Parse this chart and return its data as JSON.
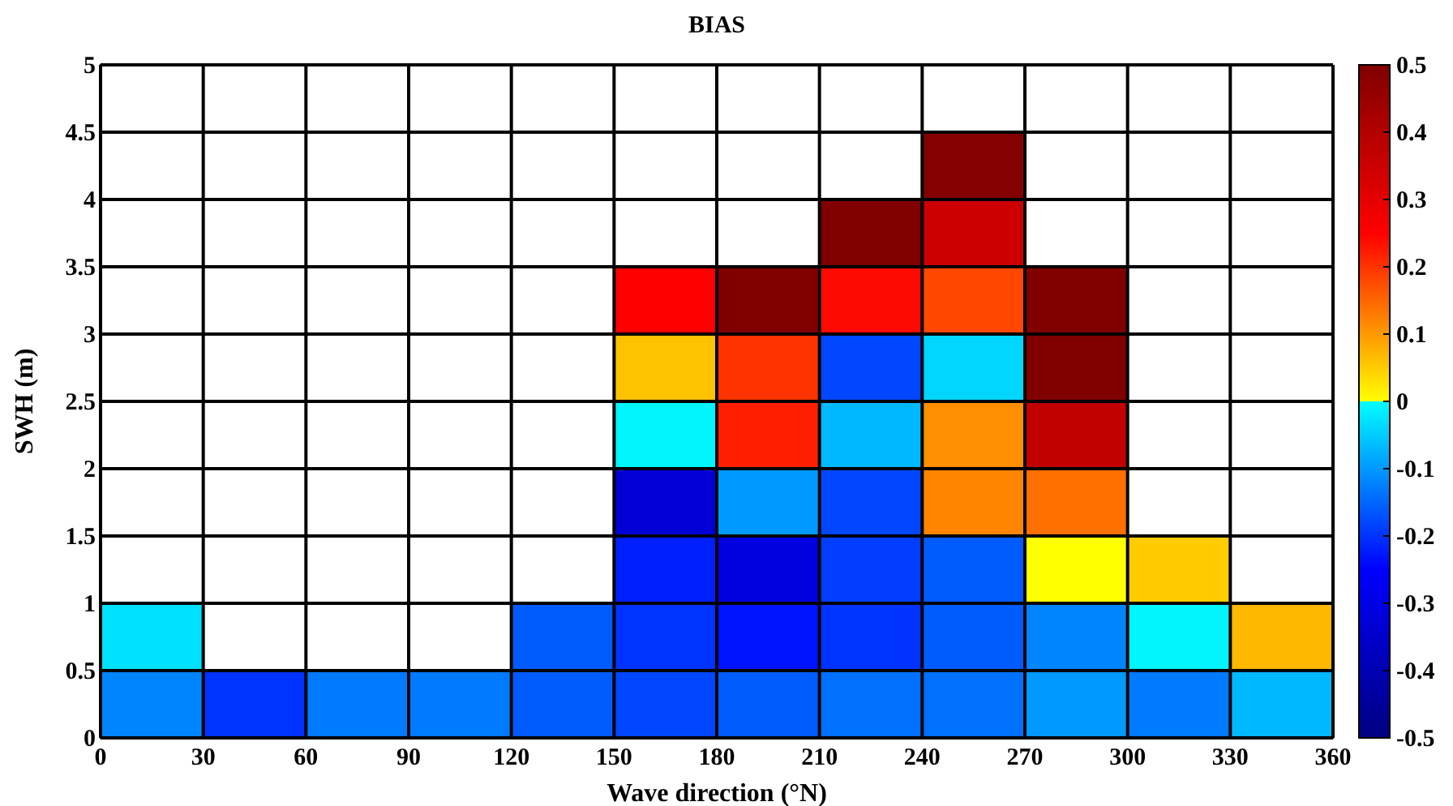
{
  "chart_data": {
    "type": "heatmap",
    "title": "BIAS",
    "xlabel": "Wave direction (°N)",
    "ylabel": "SWH (m)",
    "x": [
      15,
      45,
      75,
      105,
      135,
      165,
      195,
      225,
      255,
      285,
      315,
      345
    ],
    "y": [
      4.25,
      3.75,
      3.25,
      2.75,
      2.25,
      1.75,
      1.25,
      0.75,
      0.25
    ],
    "xlim": [
      0,
      360
    ],
    "xticks": [
      0,
      30,
      60,
      90,
      120,
      150,
      180,
      210,
      240,
      270,
      300,
      330,
      360
    ],
    "ylim": [
      0,
      5
    ],
    "yticks": [
      0,
      0.5,
      1,
      1.5,
      2,
      2.5,
      3,
      3.5,
      4,
      4.5,
      5
    ],
    "cells": [
      [
        null,
        null,
        null,
        null,
        null,
        null,
        null,
        null,
        0.49,
        null,
        null,
        null
      ],
      [
        null,
        null,
        null,
        null,
        null,
        null,
        null,
        0.5,
        0.35,
        null,
        null,
        null
      ],
      [
        null,
        null,
        null,
        null,
        null,
        0.25,
        0.5,
        0.24,
        0.18,
        0.5,
        null,
        null
      ],
      [
        null,
        null,
        null,
        null,
        null,
        0.06,
        0.2,
        -0.18,
        -0.04,
        0.5,
        null,
        null
      ],
      [
        null,
        null,
        null,
        null,
        null,
        -0.01,
        0.22,
        -0.07,
        0.11,
        0.37,
        null,
        null
      ],
      [
        null,
        null,
        null,
        null,
        null,
        -0.33,
        -0.1,
        -0.18,
        0.12,
        0.14,
        null,
        null
      ],
      [
        null,
        null,
        null,
        null,
        null,
        -0.22,
        -0.31,
        -0.19,
        -0.16,
        0.0,
        0.05,
        null
      ],
      [
        -0.03,
        null,
        null,
        null,
        -0.16,
        -0.2,
        -0.23,
        -0.2,
        -0.16,
        -0.12,
        -0.01,
        0.07
      ],
      [
        -0.12,
        -0.2,
        -0.13,
        -0.13,
        -0.16,
        -0.18,
        -0.16,
        -0.14,
        -0.14,
        -0.1,
        -0.13,
        -0.07
      ]
    ],
    "clim": [
      -0.5,
      0.5
    ],
    "cticks": [
      -0.5,
      -0.4,
      -0.3,
      -0.2,
      -0.1,
      0,
      0.1,
      0.2,
      0.3,
      0.4,
      0.5
    ],
    "grid": true
  }
}
